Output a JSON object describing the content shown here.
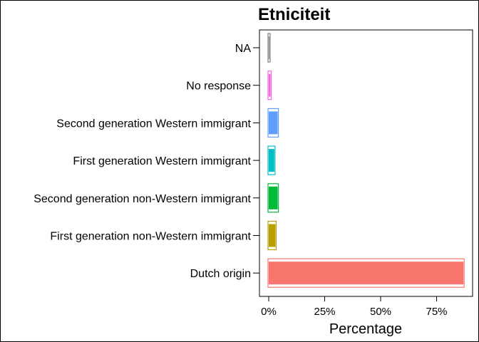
{
  "chart_data": {
    "type": "bar",
    "orientation": "horizontal",
    "title": "Etniciteit",
    "xlabel": "Percentage",
    "ylabel": "",
    "xlim": [
      0,
      100
    ],
    "x_tick_values": [
      0,
      25,
      50,
      75
    ],
    "x_tick_labels": [
      "0%",
      "25%",
      "50%",
      "75%"
    ],
    "categories": [
      "NA",
      "No response",
      "Second generation Western immigrant",
      "First generation Western immigrant",
      "Second generation non-Western immigrant",
      "First generation non-Western immigrant",
      "Dutch origin"
    ],
    "values": [
      0.3,
      0.8,
      4.0,
      2.5,
      4.0,
      3.0,
      87.0
    ],
    "colors": [
      "#7F7F7F",
      "#F564E3",
      "#619CFF",
      "#00BFC4",
      "#00BA38",
      "#B79F00",
      "#F8766D"
    ],
    "grid": false,
    "legend": "none"
  }
}
